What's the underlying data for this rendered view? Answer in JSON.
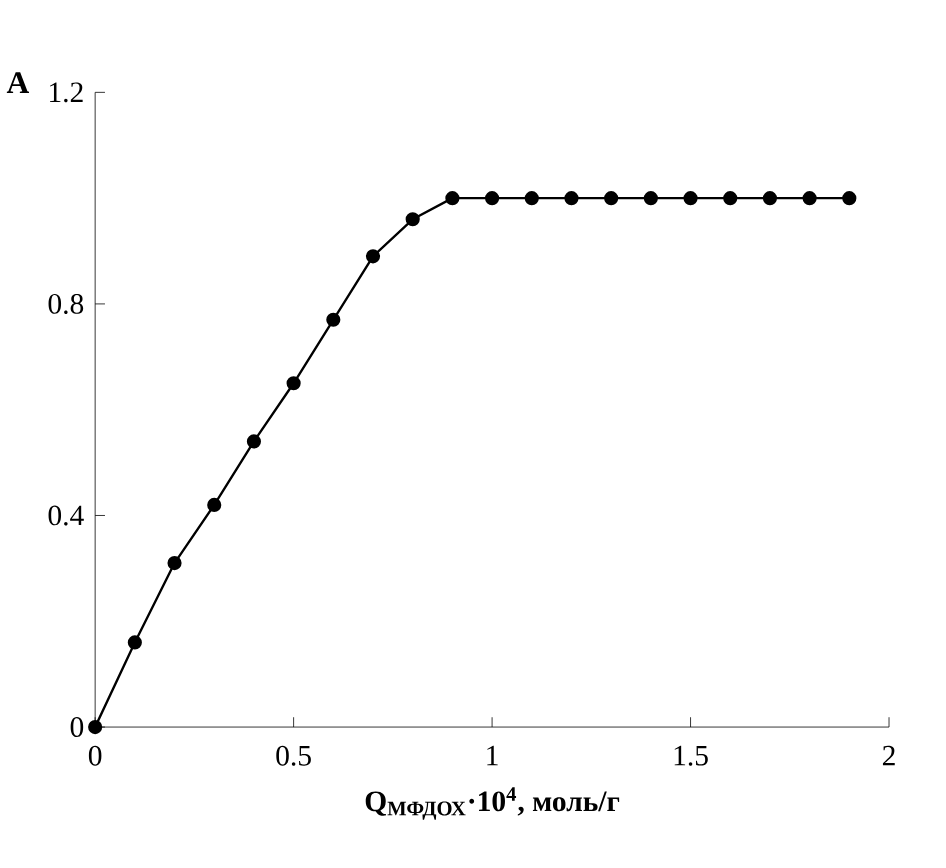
{
  "chart_data": {
    "type": "line",
    "title": "A",
    "xlabel": "Q$_{МФДОХ}$·10$^{4}$, моль/г",
    "x": [
      0,
      0.1,
      0.2,
      0.3,
      0.4,
      0.5,
      0.6,
      0.7,
      0.8,
      0.9,
      1.0,
      1.1,
      1.2,
      1.3,
      1.4,
      1.5,
      1.6,
      1.7,
      1.8,
      1.9
    ],
    "series": [
      {
        "color": "#000000",
        "values": [
          0,
          0.16,
          0.31,
          0.42,
          0.54,
          0.65,
          0.77,
          0.89,
          0.96,
          1.0,
          1.0,
          1.0,
          1.0,
          1.0,
          1.0,
          1.0,
          1.0,
          1.0,
          1.0,
          1.0
        ]
      }
    ],
    "xlim": [
      0,
      2
    ],
    "xticks": [
      0,
      0.5,
      1,
      1.5,
      2
    ],
    "ylim": [
      0,
      1.2
    ],
    "yticks": [
      0,
      0.4,
      0.8,
      1.2
    ],
    "grid": false,
    "marker": "circle",
    "line_style": "solid"
  }
}
